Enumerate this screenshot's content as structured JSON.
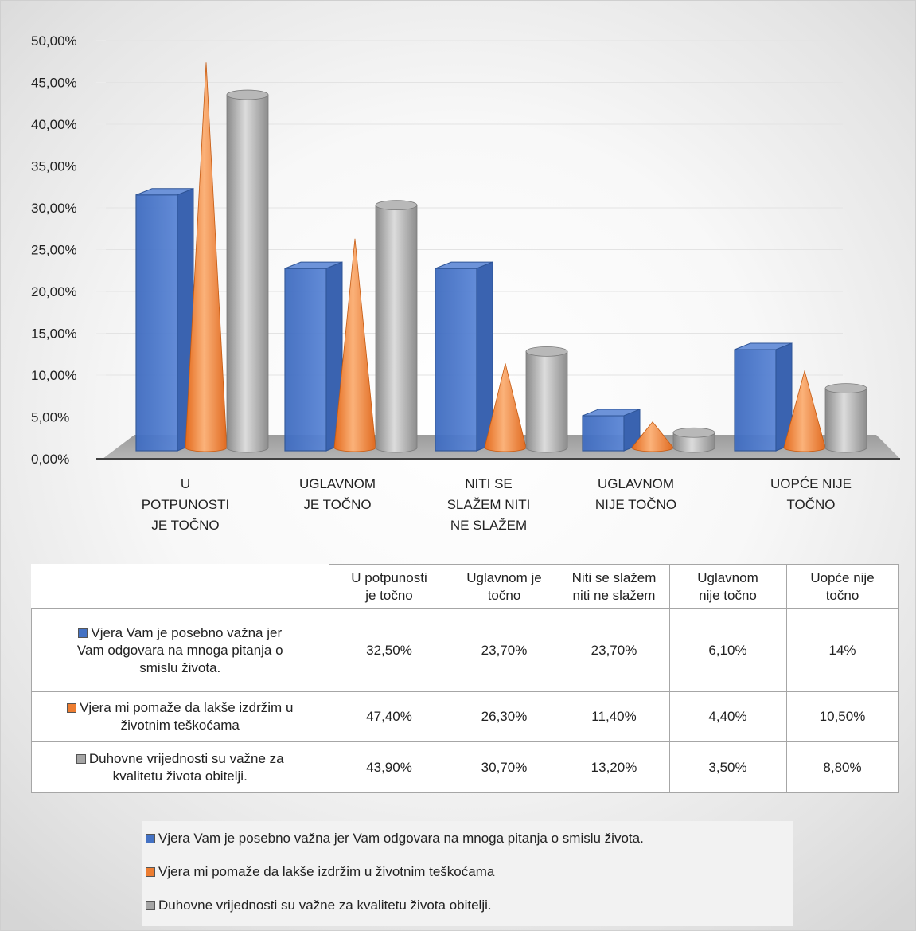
{
  "colors": {
    "series1": "#4472c4",
    "series2": "#ed7d31",
    "series3": "#a5a5a5"
  },
  "chart_data": {
    "type": "bar",
    "title": "",
    "xlabel": "",
    "ylabel": "",
    "ylim": [
      0,
      50
    ],
    "y_ticks": [
      "0,00%",
      "5,00%",
      "10,00%",
      "15,00%",
      "20,00%",
      "25,00%",
      "30,00%",
      "35,00%",
      "40,00%",
      "45,00%",
      "50,00%"
    ],
    "categories": [
      [
        "U",
        "POTPUNOSTI",
        "JE TOČNO"
      ],
      [
        "UGLAVNOM",
        "JE TOČNO"
      ],
      [
        "NITI SE",
        "SLAŽEM NITI",
        "NE SLAŽEM"
      ],
      [
        "UGLAVNOM",
        "NIJE TOČNO"
      ],
      [
        "UOPĆE NIJE",
        "TOČNO"
      ]
    ],
    "series": [
      {
        "name": "Vjera Vam je  posebno važna jer Vam odgovara na mnoga pitanja o smislu života.",
        "shape": "box",
        "values": [
          32.5,
          23.7,
          23.7,
          6.1,
          14
        ]
      },
      {
        "name": "Vjera mi pomaže da lakše izdržim u životnim teškoćama",
        "shape": "cone",
        "values": [
          47.4,
          26.3,
          11.4,
          4.4,
          10.5
        ]
      },
      {
        "name": "Duhovne vrijednosti su važne za kvalitetu života obitelji.",
        "shape": "cylinder",
        "values": [
          43.9,
          30.7,
          13.2,
          3.5,
          8.8
        ]
      }
    ],
    "grid": true,
    "legend_position": "bottom",
    "data_table": {
      "headers": [
        [
          "U potpunosti",
          "je točno"
        ],
        [
          "Uglavnom je",
          "točno"
        ],
        [
          "Niti se slažem",
          "niti ne slažem"
        ],
        [
          "Uglavnom",
          "nije točno"
        ],
        [
          "Uopće nije",
          "točno"
        ]
      ],
      "rows": [
        {
          "label_lines": [
            "Vjera Vam je  posebno važna jer",
            "Vam odgovara na mnoga pitanja o",
            "smislu života."
          ],
          "cells": [
            "32,50%",
            "23,70%",
            "23,70%",
            "6,10%",
            "14%"
          ]
        },
        {
          "label_lines": [
            "Vjera mi pomaže da lakše izdržim u",
            "životnim teškoćama"
          ],
          "cells": [
            "47,40%",
            "26,30%",
            "11,40%",
            "4,40%",
            "10,50%"
          ]
        },
        {
          "label_lines": [
            "Duhovne vrijednosti su važne za",
            "kvalitetu života obitelji."
          ],
          "cells": [
            "43,90%",
            "30,70%",
            "13,20%",
            "3,50%",
            "8,80%"
          ]
        }
      ]
    }
  }
}
